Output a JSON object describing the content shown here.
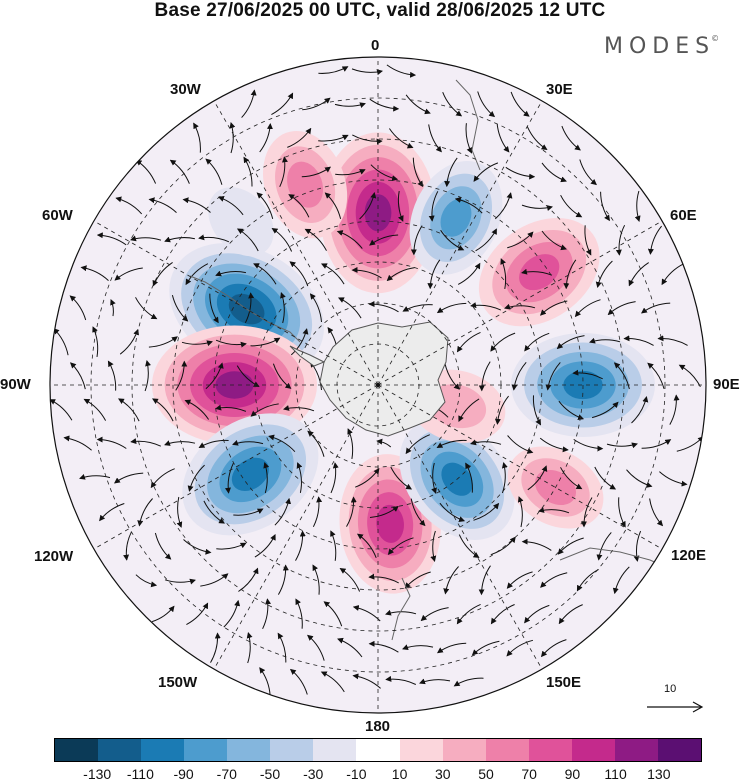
{
  "title": "Base 27/06/2025 00 UTC, valid 28/06/2025 12 UTC",
  "brand": {
    "name": "MODES",
    "mark": "©"
  },
  "projection": {
    "type": "polar-stereographic",
    "hemisphere": "south",
    "center_lat": -90
  },
  "meridian_labels": {
    "m0": "0",
    "m30e": "30E",
    "m60e": "60E",
    "m90e": "90E",
    "m120e": "120E",
    "m150e": "150E",
    "m180": "180",
    "m150w": "150W",
    "m120w": "120W",
    "m90w": "90W",
    "m60w": "60W",
    "m30w": "30W"
  },
  "reference_vector": {
    "value": "10"
  },
  "colorbar": {
    "colors": [
      "#0b3a57",
      "#135d8c",
      "#1b7bb4",
      "#4d9cce",
      "#84b6dd",
      "#b9cde8",
      "#e4e4f1",
      "#ffffff",
      "#fbd6dc",
      "#f6adc0",
      "#ee80a9",
      "#e0529a",
      "#c42a8c",
      "#8e1b84",
      "#5b0f72"
    ],
    "ticks": [
      "-130",
      "-110",
      "-90",
      "-70",
      "-50",
      "-30",
      "-10",
      "10",
      "30",
      "50",
      "70",
      "90",
      "110",
      "130"
    ]
  },
  "field_centers": [
    {
      "lon": 0,
      "lat": -48,
      "value": 120
    },
    {
      "lon": -60,
      "lat": -53,
      "value": -125
    },
    {
      "lon": -90,
      "lat": -55,
      "value": 125
    },
    {
      "lon": -125,
      "lat": -52,
      "value": -105
    },
    {
      "lon": 175,
      "lat": -56,
      "value": 95
    },
    {
      "lon": 140,
      "lat": -60,
      "value": -90
    },
    {
      "lon": 105,
      "lat": -70,
      "value": 45
    },
    {
      "lon": 120,
      "lat": -40,
      "value": 50
    },
    {
      "lon": 90,
      "lat": -40,
      "value": -100
    },
    {
      "lon": 55,
      "lat": -42,
      "value": 85
    },
    {
      "lon": 25,
      "lat": -45,
      "value": -70
    },
    {
      "lon": -20,
      "lat": -38,
      "value": 60
    },
    {
      "lon": -40,
      "lat": -38,
      "value": -20
    }
  ]
}
